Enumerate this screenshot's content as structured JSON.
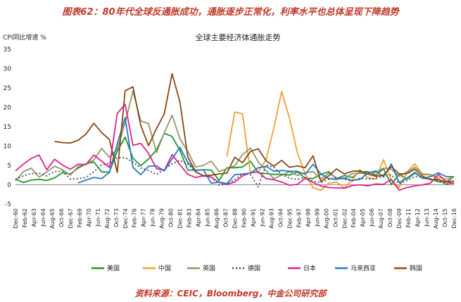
{
  "figure": {
    "title": "图表62：80年代全球反通胀成功，通胀逐步正常化，利率水平也总体呈现下降趋势",
    "source": "资料来源：CEIC，Bloomberg，中金公司研究部"
  },
  "chart_data": {
    "type": "line",
    "title": "全球主要经济体通胀走势",
    "ylabel": "CPI同比增速 %",
    "ylim": [
      -5,
      35
    ],
    "yticks": [
      -5,
      0,
      5,
      10,
      15,
      20,
      25,
      30,
      35
    ],
    "xlim": [
      1960,
      2016
    ],
    "xtick_labels": [
      "Dec-60",
      "Feb-62",
      "Apr-63",
      "Jun-64",
      "Aug-65",
      "Oct-66",
      "Dec-67",
      "Feb-69",
      "Apr-70",
      "Jun-71",
      "Aug-72",
      "Oct-73",
      "Dec-74",
      "Feb-76",
      "Apr-77",
      "Jun-78",
      "Aug-79",
      "Oct-80",
      "Dec-81",
      "Feb-83",
      "Apr-84",
      "Jun-85",
      "Aug-86",
      "Oct-87",
      "Dec-88",
      "Feb-90",
      "Apr-91",
      "Jun-92",
      "Aug-93",
      "Oct-94",
      "Dec-95",
      "Feb-97",
      "Apr-98",
      "Jun-99",
      "Aug-00",
      "Oct-01",
      "Dec-02",
      "Feb-04",
      "Apr-05",
      "Jun-06",
      "Aug-07",
      "Oct-08",
      "Dec-09",
      "Feb-11",
      "Apr-12",
      "Jun-13",
      "Aug-14",
      "Oct-15",
      "Dec-16"
    ],
    "series": [
      {
        "name": "美国",
        "color": "#1a9a2a",
        "dash": "",
        "x": [
          1960,
          1961,
          1962,
          1963,
          1964,
          1965,
          1966,
          1967,
          1968,
          1969,
          1970,
          1971,
          1972,
          1973,
          1974,
          1975,
          1976,
          1977,
          1978,
          1979,
          1980,
          1981,
          1982,
          1983,
          1984,
          1985,
          1986,
          1987,
          1988,
          1989,
          1990,
          1991,
          1992,
          1993,
          1994,
          1995,
          1996,
          1997,
          1998,
          1999,
          2000,
          2001,
          2002,
          2003,
          2004,
          2005,
          2006,
          2007,
          2008,
          2009,
          2010,
          2011,
          2012,
          2013,
          2014,
          2015,
          2016
        ],
        "y": [
          1.5,
          0.6,
          1.2,
          1.4,
          1.1,
          1.8,
          3.1,
          2.8,
          4.3,
          5.4,
          5.9,
          3.3,
          3.3,
          8.7,
          12.3,
          6.9,
          4.9,
          6.7,
          9.0,
          13.3,
          12.5,
          8.9,
          3.8,
          3.8,
          3.9,
          3.8,
          1.1,
          4.4,
          4.4,
          4.6,
          6.1,
          3.1,
          2.9,
          2.7,
          2.7,
          2.5,
          3.3,
          1.7,
          1.6,
          2.7,
          3.4,
          1.6,
          2.4,
          1.9,
          3.3,
          3.4,
          2.5,
          4.1,
          0.1,
          2.7,
          1.5,
          3.0,
          1.7,
          1.5,
          0.8,
          0.7,
          2.1
        ]
      },
      {
        "name": "中国",
        "color": "#f0a030",
        "dash": "",
        "x": [
          1987,
          1988,
          1989,
          1990,
          1991,
          1992,
          1993,
          1994,
          1995,
          1996,
          1997,
          1998,
          1999,
          2000,
          2001,
          2002,
          2003,
          2004,
          2005,
          2006,
          2007,
          2008,
          2009,
          2010,
          2011,
          2012,
          2013,
          2014,
          2015,
          2016
        ],
        "y": [
          7.3,
          18.8,
          18.3,
          3.1,
          3.4,
          6.4,
          14.7,
          24.1,
          17.1,
          8.3,
          2.8,
          -0.8,
          -1.4,
          0.4,
          0.7,
          -0.8,
          1.2,
          3.9,
          1.8,
          1.5,
          6.5,
          1.2,
          -0.7,
          3.3,
          5.4,
          2.6,
          2.6,
          2.0,
          1.4,
          2.1
        ]
      },
      {
        "name": "英国",
        "color": "#94946a",
        "dash": "",
        "x": [
          1960,
          1961,
          1962,
          1963,
          1964,
          1965,
          1966,
          1967,
          1968,
          1969,
          1970,
          1971,
          1972,
          1973,
          1974,
          1975,
          1976,
          1977,
          1978,
          1979,
          1980,
          1981,
          1982,
          1983,
          1984,
          1985,
          1986,
          1987,
          1988,
          1989,
          1990,
          1991,
          1992,
          1993,
          1994,
          1995,
          1996,
          1997,
          1998,
          1999,
          2000,
          2001,
          2002,
          2003,
          2004,
          2005,
          2006,
          2007,
          2008,
          2009,
          2010,
          2011,
          2012,
          2013,
          2014,
          2015,
          2016
        ],
        "y": [
          1.0,
          3.4,
          4.3,
          2.0,
          3.3,
          4.8,
          3.9,
          2.5,
          4.7,
          5.4,
          6.4,
          9.4,
          7.1,
          9.2,
          16.0,
          24.2,
          16.5,
          15.8,
          8.3,
          13.4,
          18.0,
          11.9,
          8.6,
          4.6,
          5.0,
          6.1,
          3.4,
          4.2,
          4.9,
          7.8,
          9.5,
          5.9,
          3.7,
          1.6,
          2.5,
          3.4,
          2.4,
          3.1,
          3.4,
          1.5,
          3.0,
          1.8,
          1.6,
          2.9,
          3.0,
          2.8,
          3.2,
          4.3,
          4.0,
          2.2,
          3.3,
          4.5,
          2.8,
          2.6,
          1.5,
          0.1,
          0.6
        ]
      },
      {
        "name": "德国",
        "color": "#444466",
        "dash": "2 3",
        "x": [
          1960,
          1961,
          1962,
          1963,
          1964,
          1965,
          1966,
          1967,
          1968,
          1969,
          1970,
          1971,
          1972,
          1973,
          1974,
          1975,
          1976,
          1977,
          1978,
          1979,
          1980,
          1981,
          1982,
          1983,
          1984,
          1985,
          1986,
          1987,
          1988,
          1989,
          1990,
          1991,
          1992,
          1993,
          1994,
          1995,
          1996,
          1997,
          1998,
          1999,
          2000,
          2001,
          2002,
          2003,
          2004,
          2005,
          2006,
          2007,
          2008,
          2009,
          2010,
          2011,
          2012,
          2013,
          2014,
          2015,
          2016
        ],
        "y": [
          1.4,
          2.3,
          2.9,
          3.0,
          2.3,
          3.4,
          3.5,
          1.5,
          1.6,
          1.9,
          3.4,
          5.2,
          5.5,
          7.0,
          7.0,
          5.9,
          4.3,
          3.7,
          2.7,
          4.0,
          5.4,
          6.3,
          5.3,
          3.3,
          2.4,
          2.1,
          -0.1,
          0.2,
          1.3,
          2.8,
          2.7,
          -0.5,
          5.1,
          4.5,
          2.7,
          1.7,
          1.4,
          1.9,
          0.9,
          0.6,
          1.4,
          1.9,
          1.4,
          1.0,
          1.7,
          1.5,
          1.6,
          2.3,
          2.6,
          0.3,
          1.1,
          2.1,
          2.0,
          1.5,
          0.9,
          0.2,
          0.5
        ]
      },
      {
        "name": "日本",
        "color": "#e0208a",
        "dash": "",
        "x": [
          1960,
          1961,
          1962,
          1963,
          1964,
          1965,
          1966,
          1967,
          1968,
          1969,
          1970,
          1971,
          1972,
          1973,
          1974,
          1975,
          1976,
          1977,
          1978,
          1979,
          1980,
          1981,
          1982,
          1983,
          1984,
          1985,
          1986,
          1987,
          1988,
          1989,
          1990,
          1991,
          1992,
          1993,
          1994,
          1995,
          1996,
          1997,
          1998,
          1999,
          2000,
          2001,
          2002,
          2003,
          2004,
          2005,
          2006,
          2007,
          2008,
          2009,
          2010,
          2011,
          2012,
          2013,
          2014,
          2015,
          2016
        ],
        "y": [
          3.6,
          5.3,
          6.8,
          7.7,
          3.9,
          6.6,
          5.1,
          4.0,
          5.3,
          5.2,
          7.7,
          6.1,
          4.5,
          18.4,
          20.8,
          10.2,
          10.7,
          8.1,
          4.2,
          3.7,
          7.8,
          5.2,
          2.7,
          1.9,
          2.3,
          2.0,
          0.6,
          0.1,
          0.7,
          2.3,
          3.1,
          3.3,
          1.6,
          1.3,
          0.7,
          -0.1,
          0.1,
          1.7,
          0.6,
          -0.3,
          -0.7,
          -0.8,
          -0.9,
          -0.2,
          0.0,
          -0.3,
          0.2,
          0.1,
          1.4,
          -1.4,
          -0.7,
          -0.3,
          0.0,
          0.4,
          2.7,
          0.8,
          0.3
        ]
      },
      {
        "name": "马来西亚",
        "color": "#2a78c8",
        "dash": "",
        "x": [
          1968,
          1969,
          1970,
          1971,
          1972,
          1973,
          1974,
          1975,
          1976,
          1977,
          1978,
          1979,
          1980,
          1981,
          1982,
          1983,
          1984,
          1985,
          1986,
          1987,
          1988,
          1989,
          1990,
          1991,
          1992,
          1993,
          1994,
          1995,
          1996,
          1997,
          1998,
          1999,
          2000,
          2001,
          2002,
          2003,
          2004,
          2005,
          2006,
          2007,
          2008,
          2009,
          2010,
          2011,
          2012,
          2013,
          2014,
          2015,
          2016
        ],
        "y": [
          0.5,
          1.2,
          1.9,
          1.6,
          3.2,
          10.6,
          17.3,
          4.5,
          2.6,
          4.8,
          4.9,
          3.6,
          6.7,
          9.7,
          5.8,
          3.7,
          3.9,
          0.4,
          0.7,
          0.3,
          2.6,
          2.8,
          3.0,
          4.4,
          4.8,
          3.5,
          3.7,
          3.5,
          3.5,
          2.7,
          5.3,
          2.8,
          1.6,
          1.4,
          1.8,
          1.1,
          1.4,
          3.0,
          3.6,
          2.0,
          5.4,
          0.6,
          1.7,
          3.2,
          1.7,
          2.1,
          3.1,
          2.1,
          2.1
        ]
      },
      {
        "name": "韩国",
        "color": "#8b4513",
        "dash": "",
        "x": [
          1965,
          1966,
          1967,
          1968,
          1969,
          1970,
          1971,
          1972,
          1973,
          1974,
          1975,
          1976,
          1977,
          1978,
          1979,
          1980,
          1981,
          1982,
          1983,
          1984,
          1985,
          1986,
          1987,
          1988,
          1989,
          1990,
          1991,
          1992,
          1993,
          1994,
          1995,
          1996,
          1997,
          1998,
          1999,
          2000,
          2001,
          2002,
          2003,
          2004,
          2005,
          2006,
          2007,
          2008,
          2009,
          2010,
          2011,
          2012,
          2013,
          2014,
          2015,
          2016
        ],
        "y": [
          11.2,
          10.9,
          10.8,
          11.5,
          13.1,
          15.9,
          13.5,
          11.7,
          3.2,
          24.3,
          25.3,
          15.3,
          10.1,
          14.5,
          18.3,
          28.7,
          21.4,
          7.2,
          3.4,
          2.3,
          2.5,
          2.8,
          3.0,
          7.1,
          5.7,
          8.6,
          9.3,
          6.2,
          4.8,
          6.3,
          4.5,
          4.9,
          4.4,
          7.5,
          0.8,
          2.3,
          4.1,
          2.8,
          3.5,
          3.6,
          2.8,
          2.2,
          2.5,
          4.7,
          2.8,
          2.9,
          4.0,
          2.2,
          1.3,
          1.3,
          0.7,
          1.0
        ]
      }
    ],
    "legend_position": "bottom",
    "grid": false
  }
}
